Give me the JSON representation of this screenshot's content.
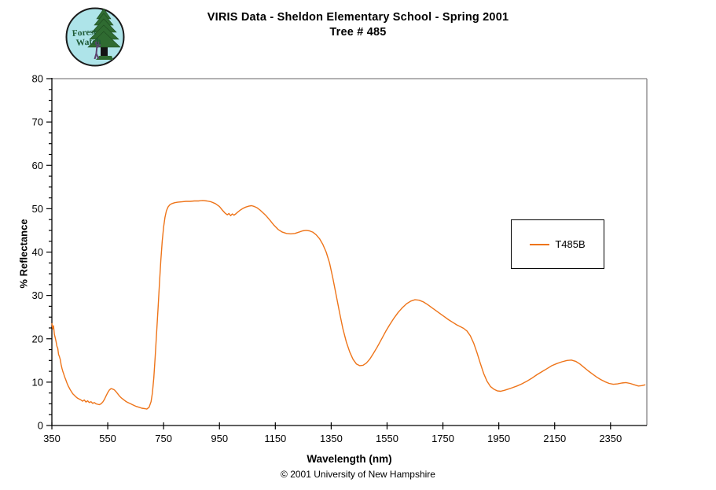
{
  "header": {
    "title_line1": "VIRIS Data - Sheldon Elementary School - Spring 2001",
    "title_line2": "Tree # 485"
  },
  "logo": {
    "line1": "Forest",
    "line2": "Watch"
  },
  "footer": {
    "copyright": "© 2001 University of New Hampshire"
  },
  "colors": {
    "curve": "#EE7419",
    "axis": "#000000",
    "plot_border_gray": "#848284",
    "background": "#FFFFFF",
    "logo_sky": "#AEE4E9",
    "logo_tree": "#2F6B31",
    "logo_text": "#1F5B37"
  },
  "chart_data": {
    "type": "line",
    "title": "VIRIS Data - Sheldon Elementary School - Spring 2001 / Tree # 485",
    "xlabel": "Wavelength (nm)",
    "ylabel": "% Reflectance",
    "xlim": [
      350,
      2480
    ],
    "ylim": [
      0,
      80
    ],
    "x_ticks": [
      350,
      550,
      750,
      950,
      1150,
      1350,
      1550,
      1750,
      1950,
      2150,
      2350
    ],
    "y_ticks": [
      0,
      10,
      20,
      30,
      40,
      50,
      60,
      70,
      80
    ],
    "y_minor_step": 2.5,
    "grid": false,
    "legend": {
      "position": "middle-right",
      "entries": [
        {
          "label": "T485B",
          "color": "#EE7419"
        }
      ]
    },
    "series": [
      {
        "name": "T485B",
        "color": "#EE7419",
        "points": [
          [
            350,
            23.6
          ],
          [
            353,
            22.3
          ],
          [
            356,
            23.0
          ],
          [
            359,
            21.0
          ],
          [
            362,
            20.2
          ],
          [
            365,
            19.4
          ],
          [
            368,
            18.3
          ],
          [
            371,
            17.8
          ],
          [
            374,
            16.4
          ],
          [
            377,
            15.9
          ],
          [
            380,
            15.2
          ],
          [
            383,
            14.1
          ],
          [
            386,
            13.2
          ],
          [
            389,
            12.5
          ],
          [
            392,
            12.0
          ],
          [
            396,
            11.2
          ],
          [
            400,
            10.5
          ],
          [
            404,
            9.8
          ],
          [
            408,
            9.2
          ],
          [
            412,
            8.7
          ],
          [
            416,
            8.2
          ],
          [
            420,
            7.8
          ],
          [
            425,
            7.3
          ],
          [
            430,
            7.0
          ],
          [
            436,
            6.6
          ],
          [
            442,
            6.3
          ],
          [
            448,
            6.1
          ],
          [
            454,
            5.9
          ],
          [
            460,
            5.6
          ],
          [
            466,
            5.9
          ],
          [
            472,
            5.4
          ],
          [
            478,
            5.7
          ],
          [
            484,
            5.3
          ],
          [
            490,
            5.5
          ],
          [
            496,
            5.1
          ],
          [
            502,
            5.3
          ],
          [
            508,
            5.0
          ],
          [
            514,
            4.9
          ],
          [
            520,
            4.8
          ],
          [
            526,
            5.0
          ],
          [
            532,
            5.4
          ],
          [
            538,
            6.0
          ],
          [
            544,
            6.8
          ],
          [
            550,
            7.6
          ],
          [
            556,
            8.2
          ],
          [
            562,
            8.5
          ],
          [
            568,
            8.4
          ],
          [
            574,
            8.2
          ],
          [
            580,
            7.8
          ],
          [
            586,
            7.3
          ],
          [
            592,
            6.8
          ],
          [
            598,
            6.4
          ],
          [
            606,
            6.0
          ],
          [
            614,
            5.6
          ],
          [
            622,
            5.3
          ],
          [
            632,
            5.0
          ],
          [
            642,
            4.7
          ],
          [
            652,
            4.4
          ],
          [
            662,
            4.2
          ],
          [
            672,
            4.0
          ],
          [
            682,
            3.9
          ],
          [
            690,
            3.8
          ],
          [
            698,
            4.2
          ],
          [
            705,
            5.5
          ],
          [
            710,
            7.5
          ],
          [
            715,
            11.0
          ],
          [
            720,
            16.0
          ],
          [
            725,
            21.5
          ],
          [
            730,
            27.0
          ],
          [
            735,
            32.5
          ],
          [
            740,
            38.0
          ],
          [
            745,
            42.5
          ],
          [
            750,
            45.8
          ],
          [
            755,
            48.0
          ],
          [
            760,
            49.5
          ],
          [
            766,
            50.4
          ],
          [
            772,
            50.9
          ],
          [
            780,
            51.2
          ],
          [
            790,
            51.4
          ],
          [
            800,
            51.5
          ],
          [
            815,
            51.6
          ],
          [
            830,
            51.7
          ],
          [
            845,
            51.7
          ],
          [
            860,
            51.8
          ],
          [
            875,
            51.8
          ],
          [
            890,
            51.9
          ],
          [
            905,
            51.8
          ],
          [
            920,
            51.6
          ],
          [
            935,
            51.2
          ],
          [
            950,
            50.5
          ],
          [
            960,
            49.7
          ],
          [
            970,
            49.0
          ],
          [
            978,
            48.6
          ],
          [
            984,
            48.9
          ],
          [
            990,
            48.4
          ],
          [
            996,
            48.8
          ],
          [
            1002,
            48.5
          ],
          [
            1008,
            48.8
          ],
          [
            1015,
            49.2
          ],
          [
            1025,
            49.7
          ],
          [
            1035,
            50.1
          ],
          [
            1045,
            50.4
          ],
          [
            1055,
            50.6
          ],
          [
            1065,
            50.7
          ],
          [
            1075,
            50.5
          ],
          [
            1085,
            50.2
          ],
          [
            1095,
            49.7
          ],
          [
            1105,
            49.1
          ],
          [
            1115,
            48.5
          ],
          [
            1130,
            47.4
          ],
          [
            1145,
            46.2
          ],
          [
            1160,
            45.2
          ],
          [
            1175,
            44.6
          ],
          [
            1190,
            44.3
          ],
          [
            1205,
            44.2
          ],
          [
            1220,
            44.3
          ],
          [
            1235,
            44.6
          ],
          [
            1248,
            44.9
          ],
          [
            1260,
            45.0
          ],
          [
            1272,
            44.9
          ],
          [
            1284,
            44.6
          ],
          [
            1296,
            44.0
          ],
          [
            1308,
            43.1
          ],
          [
            1320,
            41.8
          ],
          [
            1332,
            40.0
          ],
          [
            1344,
            37.5
          ],
          [
            1356,
            34.0
          ],
          [
            1368,
            30.0
          ],
          [
            1380,
            26.0
          ],
          [
            1392,
            22.3
          ],
          [
            1404,
            19.3
          ],
          [
            1416,
            17.0
          ],
          [
            1428,
            15.3
          ],
          [
            1440,
            14.2
          ],
          [
            1452,
            13.8
          ],
          [
            1464,
            13.9
          ],
          [
            1476,
            14.4
          ],
          [
            1488,
            15.3
          ],
          [
            1500,
            16.5
          ],
          [
            1515,
            18.1
          ],
          [
            1530,
            19.9
          ],
          [
            1545,
            21.7
          ],
          [
            1560,
            23.3
          ],
          [
            1575,
            24.8
          ],
          [
            1590,
            26.1
          ],
          [
            1605,
            27.2
          ],
          [
            1620,
            28.1
          ],
          [
            1635,
            28.7
          ],
          [
            1650,
            29.0
          ],
          [
            1665,
            28.9
          ],
          [
            1680,
            28.5
          ],
          [
            1695,
            27.9
          ],
          [
            1710,
            27.2
          ],
          [
            1725,
            26.5
          ],
          [
            1740,
            25.8
          ],
          [
            1755,
            25.1
          ],
          [
            1770,
            24.4
          ],
          [
            1785,
            23.8
          ],
          [
            1800,
            23.2
          ],
          [
            1812,
            22.8
          ],
          [
            1824,
            22.4
          ],
          [
            1836,
            21.8
          ],
          [
            1848,
            20.7
          ],
          [
            1860,
            19.0
          ],
          [
            1872,
            16.8
          ],
          [
            1884,
            14.3
          ],
          [
            1896,
            12.0
          ],
          [
            1908,
            10.2
          ],
          [
            1920,
            9.0
          ],
          [
            1932,
            8.4
          ],
          [
            1944,
            8.0
          ],
          [
            1956,
            7.9
          ],
          [
            1970,
            8.1
          ],
          [
            1984,
            8.4
          ],
          [
            1998,
            8.7
          ],
          [
            2015,
            9.1
          ],
          [
            2032,
            9.6
          ],
          [
            2050,
            10.2
          ],
          [
            2068,
            10.9
          ],
          [
            2086,
            11.7
          ],
          [
            2104,
            12.4
          ],
          [
            2122,
            13.1
          ],
          [
            2140,
            13.8
          ],
          [
            2158,
            14.3
          ],
          [
            2176,
            14.7
          ],
          [
            2194,
            15.0
          ],
          [
            2210,
            15.1
          ],
          [
            2225,
            14.8
          ],
          [
            2240,
            14.2
          ],
          [
            2255,
            13.4
          ],
          [
            2270,
            12.6
          ],
          [
            2285,
            11.9
          ],
          [
            2300,
            11.2
          ],
          [
            2315,
            10.6
          ],
          [
            2330,
            10.1
          ],
          [
            2345,
            9.7
          ],
          [
            2360,
            9.5
          ],
          [
            2375,
            9.6
          ],
          [
            2390,
            9.8
          ],
          [
            2405,
            9.9
          ],
          [
            2420,
            9.7
          ],
          [
            2435,
            9.4
          ],
          [
            2450,
            9.1
          ],
          [
            2462,
            9.2
          ],
          [
            2475,
            9.4
          ]
        ]
      }
    ]
  }
}
